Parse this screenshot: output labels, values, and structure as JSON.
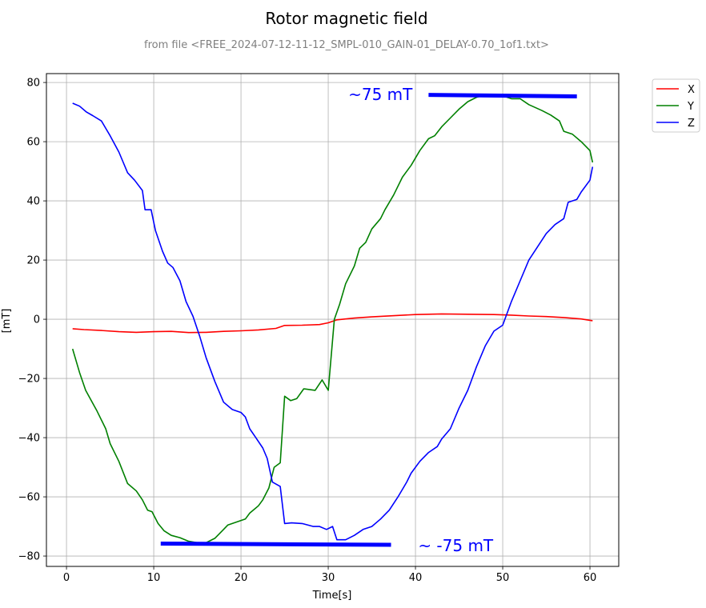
{
  "chart_data": {
    "type": "line",
    "title": "Rotor magnetic field",
    "subtitle": "from file <FREE_2024-07-12-11-12_SMPL-010_GAIN-01_DELAY-0.70_1of1.txt>",
    "xlabel": "Time[s]",
    "ylabel": "[mT]",
    "xlim": [
      -2.3,
      63.3
    ],
    "ylim": [
      -83.5,
      83
    ],
    "xticks": [
      0,
      10,
      20,
      30,
      40,
      50,
      60
    ],
    "yticks": [
      -80,
      -60,
      -40,
      -20,
      0,
      20,
      40,
      60,
      80
    ],
    "grid": true,
    "legend_position": "outside-top-right",
    "series": [
      {
        "name": "X",
        "color": "#ff0000",
        "points": [
          [
            0.7,
            -3.2
          ],
          [
            2,
            -3.5
          ],
          [
            4,
            -3.8
          ],
          [
            6,
            -4.2
          ],
          [
            8,
            -4.4
          ],
          [
            10,
            -4.2
          ],
          [
            12,
            -4.1
          ],
          [
            14,
            -4.5
          ],
          [
            16,
            -4.4
          ],
          [
            18,
            -4.1
          ],
          [
            20,
            -3.9
          ],
          [
            22,
            -3.6
          ],
          [
            24,
            -3.1
          ],
          [
            25,
            -2.1
          ],
          [
            27,
            -2.0
          ],
          [
            29,
            -1.8
          ],
          [
            30,
            -1.2
          ],
          [
            31,
            -0.2
          ],
          [
            33,
            0.4
          ],
          [
            35,
            0.8
          ],
          [
            38,
            1.3
          ],
          [
            40,
            1.6
          ],
          [
            43,
            1.8
          ],
          [
            46,
            1.7
          ],
          [
            49,
            1.6
          ],
          [
            51,
            1.4
          ],
          [
            53,
            1.1
          ],
          [
            55,
            0.9
          ],
          [
            57,
            0.6
          ],
          [
            59,
            0.1
          ],
          [
            60.3,
            -0.5
          ]
        ]
      },
      {
        "name": "Y",
        "color": "#008000",
        "points": [
          [
            0.7,
            -10
          ],
          [
            1.5,
            -18
          ],
          [
            2.2,
            -24
          ],
          [
            3.5,
            -31
          ],
          [
            4.5,
            -37
          ],
          [
            5,
            -42
          ],
          [
            6,
            -48
          ],
          [
            7,
            -55.5
          ],
          [
            8,
            -58
          ],
          [
            8.7,
            -61
          ],
          [
            9.3,
            -64.5
          ],
          [
            9.8,
            -65
          ],
          [
            10.5,
            -69
          ],
          [
            11.2,
            -71.5
          ],
          [
            12,
            -73
          ],
          [
            13,
            -73.8
          ],
          [
            14,
            -75
          ],
          [
            15,
            -75.5
          ],
          [
            16,
            -75.5
          ],
          [
            17,
            -74
          ],
          [
            18,
            -71
          ],
          [
            18.5,
            -69.5
          ],
          [
            19.5,
            -68.5
          ],
          [
            20.5,
            -67.5
          ],
          [
            21,
            -65.5
          ],
          [
            22,
            -63
          ],
          [
            22.5,
            -61
          ],
          [
            23.2,
            -57
          ],
          [
            23.8,
            -50
          ],
          [
            24.5,
            -48.5
          ],
          [
            25,
            -26
          ],
          [
            25.7,
            -27.5
          ],
          [
            26.4,
            -26.8
          ],
          [
            27.2,
            -23.5
          ],
          [
            28.5,
            -24
          ],
          [
            29.3,
            -20.5
          ],
          [
            30,
            -24
          ],
          [
            30.7,
            0
          ],
          [
            31.3,
            5
          ],
          [
            32,
            12
          ],
          [
            33,
            18
          ],
          [
            33.6,
            24
          ],
          [
            34.3,
            26
          ],
          [
            35,
            30.5
          ],
          [
            36,
            34
          ],
          [
            36.5,
            37
          ],
          [
            37.5,
            42
          ],
          [
            38.5,
            48
          ],
          [
            39.5,
            52
          ],
          [
            40.5,
            57
          ],
          [
            41.5,
            61
          ],
          [
            42.2,
            62
          ],
          [
            43,
            65
          ],
          [
            44,
            68
          ],
          [
            45,
            71
          ],
          [
            46,
            73.5
          ],
          [
            47,
            75
          ],
          [
            48,
            75.8
          ],
          [
            50,
            75.5
          ],
          [
            51,
            74.5
          ],
          [
            52,
            74.5
          ],
          [
            53,
            72.5
          ],
          [
            54.5,
            70.5
          ],
          [
            55.5,
            69
          ],
          [
            56.5,
            67
          ],
          [
            57,
            63.5
          ],
          [
            58,
            62.5
          ],
          [
            59,
            60
          ],
          [
            60,
            57
          ],
          [
            60.3,
            53
          ]
        ]
      },
      {
        "name": "Z",
        "color": "#0000ff",
        "points": [
          [
            0.7,
            73
          ],
          [
            1.5,
            72
          ],
          [
            2.3,
            70
          ],
          [
            3,
            68.8
          ],
          [
            4,
            67
          ],
          [
            4.5,
            64.5
          ],
          [
            5,
            62
          ],
          [
            6,
            56.5
          ],
          [
            7,
            49.5
          ],
          [
            7.8,
            47
          ],
          [
            8.7,
            43.5
          ],
          [
            9,
            37
          ],
          [
            9.7,
            37
          ],
          [
            10.2,
            30
          ],
          [
            11,
            23
          ],
          [
            11.6,
            19
          ],
          [
            12.2,
            17.5
          ],
          [
            13,
            13
          ],
          [
            13.7,
            6
          ],
          [
            14.5,
            1
          ],
          [
            15.3,
            -6
          ],
          [
            16,
            -13
          ],
          [
            17,
            -21
          ],
          [
            18,
            -28
          ],
          [
            19,
            -30.5
          ],
          [
            20,
            -31.5
          ],
          [
            20.5,
            -33
          ],
          [
            21,
            -37
          ],
          [
            21.7,
            -40
          ],
          [
            22.5,
            -43.5
          ],
          [
            23,
            -47
          ],
          [
            23.6,
            -55
          ],
          [
            24.5,
            -56.5
          ],
          [
            25,
            -69
          ],
          [
            25.8,
            -68.8
          ],
          [
            27,
            -69
          ],
          [
            28.3,
            -70
          ],
          [
            29,
            -70
          ],
          [
            29.8,
            -71
          ],
          [
            30.5,
            -70
          ],
          [
            31,
            -74.5
          ],
          [
            32,
            -74.5
          ],
          [
            33,
            -73
          ],
          [
            34,
            -71
          ],
          [
            35,
            -70
          ],
          [
            36,
            -67.5
          ],
          [
            37,
            -64.5
          ],
          [
            38,
            -60
          ],
          [
            39,
            -55
          ],
          [
            39.5,
            -52
          ],
          [
            40.5,
            -48
          ],
          [
            41.5,
            -45
          ],
          [
            42.5,
            -43
          ],
          [
            43,
            -40.5
          ],
          [
            44,
            -37
          ],
          [
            45,
            -30
          ],
          [
            46,
            -24
          ],
          [
            47,
            -16
          ],
          [
            48,
            -9
          ],
          [
            49,
            -4
          ],
          [
            50,
            -2
          ],
          [
            51,
            6
          ],
          [
            52,
            13
          ],
          [
            53,
            20
          ],
          [
            54,
            24.5
          ],
          [
            55,
            29
          ],
          [
            56,
            32
          ],
          [
            57,
            34
          ],
          [
            57.5,
            39.5
          ],
          [
            58.5,
            40.5
          ],
          [
            59,
            43
          ],
          [
            60,
            47
          ],
          [
            60.3,
            51.5
          ]
        ]
      }
    ],
    "annotations": [
      {
        "text": "~75 mT",
        "x": 32.3,
        "y": 76
      },
      {
        "text": "~ -75 mT",
        "x": 40.3,
        "y": -76.5
      }
    ],
    "reference_lines": [
      {
        "color": "#0000ff",
        "x": [
          41.5,
          58.5
        ],
        "y": [
          75.8,
          75.3
        ]
      },
      {
        "color": "#0000ff",
        "x": [
          10.8,
          37.2
        ],
        "y": [
          -75.8,
          -76.2
        ]
      }
    ]
  }
}
